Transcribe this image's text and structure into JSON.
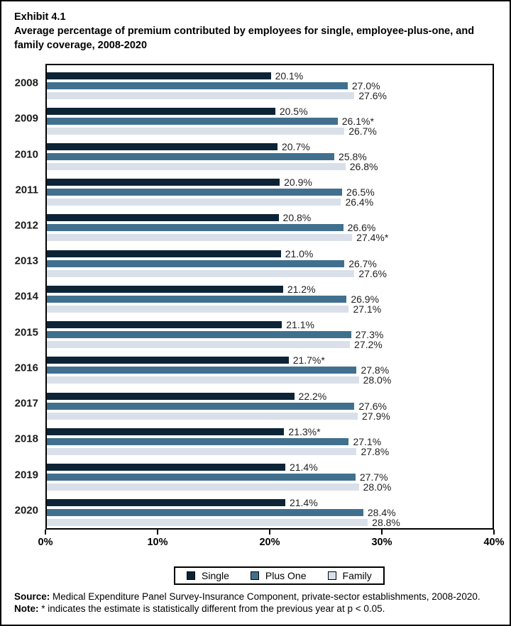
{
  "header": {
    "exhibit": "Exhibit 4.1",
    "title": "Average percentage of premium contributed by employees for single, employee-plus-one, and family coverage, 2008-2020"
  },
  "chart_data": {
    "type": "bar",
    "orientation": "horizontal",
    "title": "Average percentage of premium contributed by employees for single, employee-plus-one, and family coverage, 2008-2020",
    "xlabel": "",
    "ylabel": "",
    "xlim": [
      0,
      40
    ],
    "grid": false,
    "categories": [
      "2008",
      "2009",
      "2010",
      "2011",
      "2012",
      "2013",
      "2014",
      "2015",
      "2016",
      "2017",
      "2018",
      "2019",
      "2020"
    ],
    "series": [
      {
        "name": "Single",
        "color": "#0d2437",
        "values": [
          20.1,
          20.5,
          20.7,
          20.9,
          20.8,
          21.0,
          21.2,
          21.1,
          21.7,
          22.2,
          21.3,
          21.4,
          21.4
        ],
        "labels": [
          "20.1%",
          "20.5%",
          "20.7%",
          "20.9%",
          "20.8%",
          "21.0%",
          "21.2%",
          "21.1%",
          "21.7%*",
          "22.2%",
          "21.3%*",
          "21.4%",
          "21.4%"
        ]
      },
      {
        "name": "Plus One",
        "color": "#41708f",
        "values": [
          27.0,
          26.1,
          25.8,
          26.5,
          26.6,
          26.7,
          26.9,
          27.3,
          27.8,
          27.6,
          27.1,
          27.7,
          28.4
        ],
        "labels": [
          "27.0%",
          "26.1%*",
          "25.8%",
          "26.5%",
          "26.6%",
          "26.7%",
          "26.9%",
          "27.3%",
          "27.8%",
          "27.6%",
          "27.1%",
          "27.7%",
          "28.4%"
        ]
      },
      {
        "name": "Family",
        "color": "#d9e0e9",
        "values": [
          27.6,
          26.7,
          26.8,
          26.4,
          27.4,
          27.6,
          27.1,
          27.2,
          28.0,
          27.9,
          27.8,
          28.0,
          28.8
        ],
        "labels": [
          "27.6%",
          "26.7%",
          "26.8%",
          "26.4%",
          "27.4%*",
          "27.6%",
          "27.1%",
          "27.2%",
          "28.0%",
          "27.9%",
          "27.8%",
          "28.0%",
          "28.8%"
        ]
      }
    ],
    "x_ticks": [
      {
        "value": 0,
        "label": "0%"
      },
      {
        "value": 10,
        "label": "10%"
      },
      {
        "value": 20,
        "label": "20%"
      },
      {
        "value": 30,
        "label": "30%"
      },
      {
        "value": 40,
        "label": "40%"
      }
    ],
    "legend": {
      "position": "bottom",
      "entries": [
        {
          "label": "Single",
          "color": "#0d2437"
        },
        {
          "label": "Plus One",
          "color": "#41708f"
        },
        {
          "label": "Family",
          "color": "#d9e0e9"
        }
      ]
    }
  },
  "footer": {
    "source_label": "Source:",
    "source_text": " Medical Expenditure Panel Survey-Insurance Component, private-sector establishments, 2008-2020.",
    "note_label": "Note:",
    "note_text": " * indicates the estimate is statistically different from the previous year at p < 0.05."
  }
}
